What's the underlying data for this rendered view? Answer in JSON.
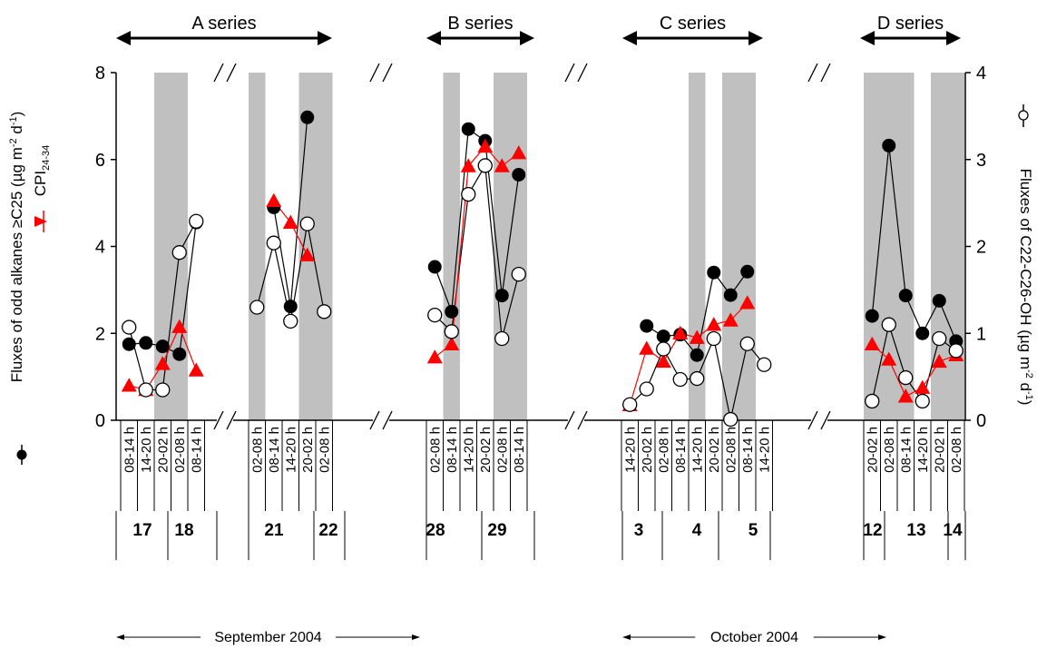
{
  "chart_data": {
    "type": "line",
    "title": "",
    "left_axis": {
      "label_prefix": "Fluxes  of odd alkanes ≥C25 (µg m",
      "label_sup1": "-2",
      "label_mid": " d",
      "label_sup2": "-1",
      "label_suffix": ")",
      "secondary_label_base": "CPI",
      "secondary_label_sub": "24-34",
      "ylim": [
        0,
        8
      ],
      "ticks": [
        "0",
        "2",
        "4",
        "6",
        "8"
      ]
    },
    "right_axis": {
      "label_prefix": "Fluxes of C22-C26-OH (µg m",
      "label_sup1": "-2",
      "label_mid": " d",
      "label_sup2": "-1",
      "label_suffix": ")",
      "ylim": [
        0,
        4
      ],
      "ticks": [
        "0",
        "1",
        "2",
        "3",
        "4"
      ]
    },
    "series_groups": [
      {
        "name": "A series",
        "slots": [
          {
            "time": "08-14 h",
            "odd": 1.75,
            "oh": 1.07,
            "cpi": 0.8
          },
          {
            "time": "14-20 h",
            "odd": 1.78,
            "oh": 0.35,
            "cpi": 0.7
          },
          {
            "time": "20-02 h",
            "odd": 1.7,
            "oh": 0.35,
            "cpi": 1.3
          },
          {
            "time": "02-08 h",
            "odd": 1.52,
            "oh": 1.93,
            "cpi": 2.15
          },
          {
            "time": "08-14 h",
            "odd": 4.55,
            "oh": 2.29,
            "cpi": 1.15
          }
        ]
      },
      {
        "name": "",
        "slots": [
          {
            "time": "02-08 h",
            "odd": null,
            "oh": 1.3,
            "cpi": null
          },
          {
            "time": "08-14 h",
            "odd": 4.9,
            "oh": 2.04,
            "cpi": 5.05
          },
          {
            "time": "14-20 h",
            "odd": 2.62,
            "oh": 1.14,
            "cpi": 4.55
          },
          {
            "time": "20-02 h",
            "odd": 6.97,
            "oh": 2.26,
            "cpi": 3.8
          },
          {
            "time": "02-08 h",
            "odd": null,
            "oh": 1.25,
            "cpi": null
          }
        ]
      },
      {
        "name": "B series",
        "slots": [
          {
            "time": "02-08 h",
            "odd": 3.53,
            "oh": 1.21,
            "cpi": 1.45
          },
          {
            "time": "08-14 h",
            "odd": 2.5,
            "oh": 1.02,
            "cpi": 1.75
          },
          {
            "time": "14-20 h",
            "odd": 6.7,
            "oh": 2.6,
            "cpi": 5.85
          },
          {
            "time": "20-02 h",
            "odd": 6.43,
            "oh": 2.93,
            "cpi": 6.3
          },
          {
            "time": "02-08 h",
            "odd": 2.87,
            "oh": 0.94,
            "cpi": 5.85
          },
          {
            "time": "08-14 h",
            "odd": 5.65,
            "oh": 1.68,
            "cpi": 6.15
          }
        ]
      },
      {
        "name": "C series",
        "slots": [
          {
            "time": "14-20 h",
            "odd": null,
            "oh": 0.18,
            "cpi": 0.35
          },
          {
            "time": "20-02 h",
            "odd": 2.17,
            "oh": 0.36,
            "cpi": 1.65
          },
          {
            "time": "02-08 h",
            "odd": 1.93,
            "oh": 0.82,
            "cpi": 1.35
          },
          {
            "time": "08-14 h",
            "odd": 1.97,
            "oh": 0.47,
            "cpi": 2.0
          },
          {
            "time": "14-20 h",
            "odd": 1.5,
            "oh": 0.48,
            "cpi": 1.9
          },
          {
            "time": "20-02 h",
            "odd": 3.4,
            "oh": 0.94,
            "cpi": 2.2
          },
          {
            "time": "02-08 h",
            "odd": 2.88,
            "oh": 0.01,
            "cpi": 2.3
          },
          {
            "time": "08-14 h",
            "odd": 3.42,
            "oh": 0.88,
            "cpi": 2.7
          },
          {
            "time": "14-20 h",
            "odd": null,
            "oh": 0.64,
            "cpi": null
          }
        ]
      },
      {
        "name": "D series",
        "slots": [
          {
            "time": "20-02 h",
            "odd": 2.4,
            "oh": 0.22,
            "cpi": 1.75
          },
          {
            "time": "02-08 h",
            "odd": 6.32,
            "oh": 1.1,
            "cpi": 1.4
          },
          {
            "time": "08-14 h",
            "odd": 2.87,
            "oh": 0.49,
            "cpi": 0.55
          },
          {
            "time": "14-20 h",
            "odd": 2.0,
            "oh": 0.22,
            "cpi": 0.75
          },
          {
            "time": "20-02 h",
            "odd": 2.75,
            "oh": 0.94,
            "cpi": 1.35
          },
          {
            "time": "02-08 h",
            "odd": 1.82,
            "oh": 0.8,
            "cpi": 1.5
          }
        ]
      }
    ],
    "night_bands": [
      [
        2,
        3
      ],
      [
        5,
        5
      ],
      [
        8,
        9
      ],
      [
        11,
        11
      ],
      [
        14,
        15
      ],
      [
        20,
        20
      ],
      [
        22,
        23
      ],
      [
        25,
        26
      ],
      [
        27,
        27
      ],
      [
        29,
        30
      ]
    ],
    "day_labels": [
      {
        "label": "17",
        "group": 0
      },
      {
        "label": "18",
        "group": 0
      },
      {
        "label": "21",
        "group": 1
      },
      {
        "label": "22",
        "group": 1
      },
      {
        "label": "28",
        "group": 2
      },
      {
        "label": "29",
        "group": 2
      },
      {
        "label": "3",
        "group": 3
      },
      {
        "label": "4",
        "group": 3
      },
      {
        "label": "5",
        "group": 3
      },
      {
        "label": "12",
        "group": 4
      },
      {
        "label": "13",
        "group": 4
      },
      {
        "label": "14",
        "group": 4
      }
    ],
    "months": [
      {
        "label": "September 2004"
      },
      {
        "label": "October 2004"
      }
    ],
    "colors": {
      "odd": "#000000",
      "oh": "#000000",
      "cpi": "#ff0000",
      "band": "#c0c0c0"
    }
  }
}
